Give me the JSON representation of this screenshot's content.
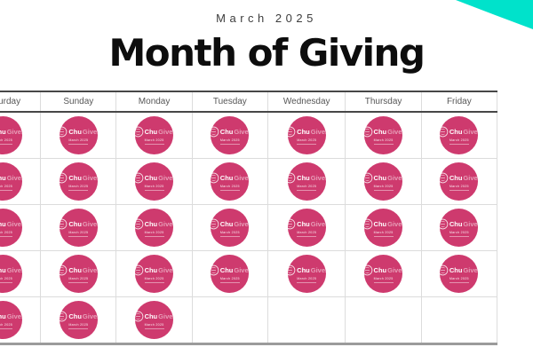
{
  "header": {
    "subtitle": "March 2025",
    "title": "Month of Giving"
  },
  "calendar": {
    "days": [
      "Saturday",
      "Sunday",
      "Monday",
      "Tuesday",
      "Wednesday",
      "Thursday",
      "Friday"
    ],
    "rows": [
      [
        1,
        1,
        1,
        1,
        1,
        1,
        1
      ],
      [
        1,
        1,
        1,
        1,
        1,
        1,
        1
      ],
      [
        1,
        1,
        1,
        1,
        1,
        1,
        1
      ],
      [
        1,
        1,
        1,
        1,
        1,
        1,
        1
      ],
      [
        1,
        1,
        1,
        0,
        0,
        0,
        0
      ]
    ]
  },
  "badge": {
    "brand_bold": "Chu",
    "brand_light": "Gives",
    "subtext": "March 2025"
  },
  "icons": {
    "emblem": "chu-crest-icon"
  },
  "colors": {
    "badge_pink": "#CE3A6E",
    "corner_teal": "#00E2CB"
  }
}
